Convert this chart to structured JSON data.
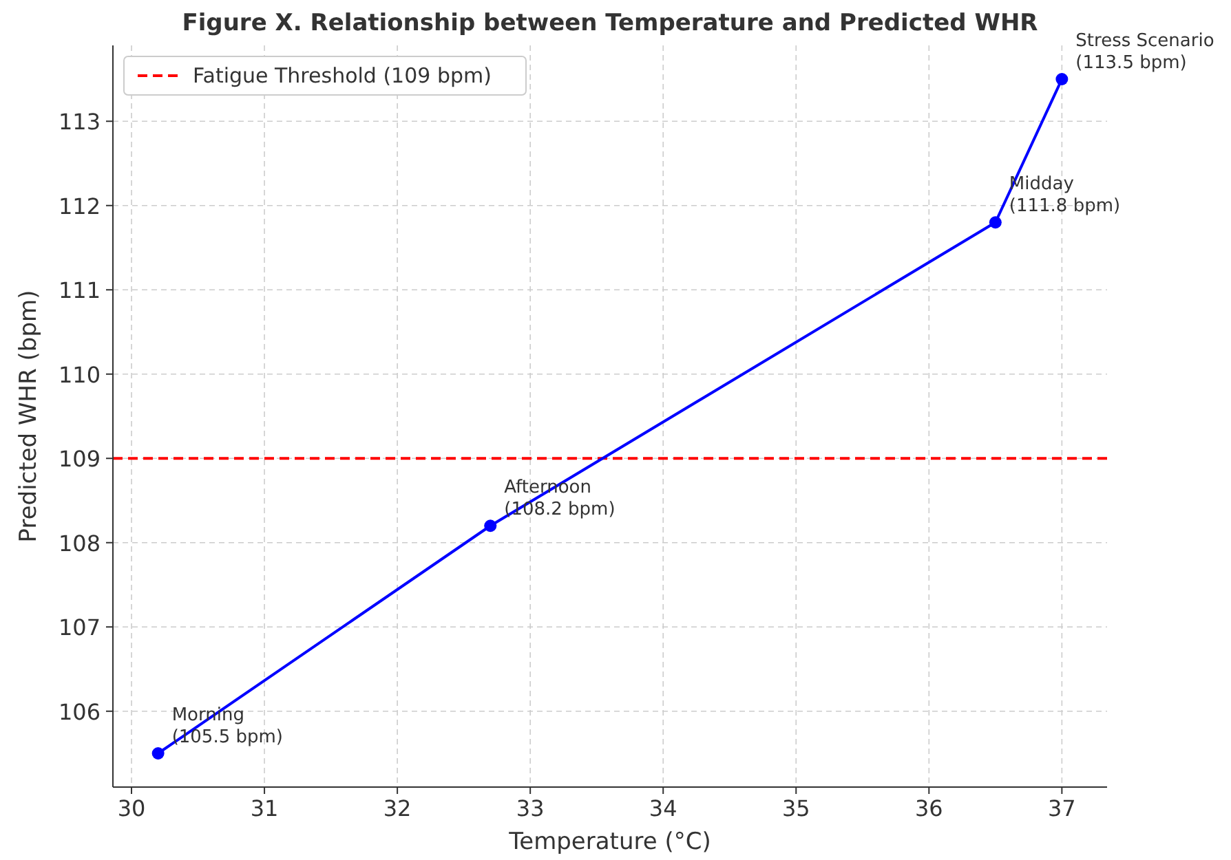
{
  "chart_data": {
    "type": "line",
    "title": "Figure X. Relationship between Temperature and Predicted WHR",
    "xlabel": "Temperature (°C)",
    "ylabel": "Predicted WHR (bpm)",
    "x": [
      30.2,
      32.7,
      36.5,
      37.0
    ],
    "series": [
      {
        "color": "#0000ff",
        "values": [
          105.5,
          108.2,
          111.8,
          113.5
        ]
      }
    ],
    "xlim": [
      29.86,
      37.34
    ],
    "xticks": [
      30,
      31,
      32,
      33,
      34,
      35,
      36,
      37
    ],
    "ylim": [
      105.1,
      113.9
    ],
    "yticks": [
      106,
      107,
      108,
      109,
      110,
      111,
      112,
      113
    ],
    "ref_lines": [
      {
        "axis": "y",
        "value": 109,
        "label": "Fatigue Threshold (109 bpm)",
        "color": "#ff0000",
        "line_style": "dashed"
      }
    ],
    "annotations": [
      {
        "text": "Morning\n(105.5 bpm)",
        "x": 30.2,
        "y": 105.5
      },
      {
        "text": "Afternoon\n(108.2 bpm)",
        "x": 32.7,
        "y": 108.2
      },
      {
        "text": "Midday\n(111.8 bpm)",
        "x": 36.5,
        "y": 111.8
      },
      {
        "text": "Stress Scenario\n(113.5 bpm)",
        "x": 37.0,
        "y": 113.5
      }
    ],
    "grid": true,
    "legend": "top left",
    "marker": "circle",
    "line_style": "solid"
  }
}
